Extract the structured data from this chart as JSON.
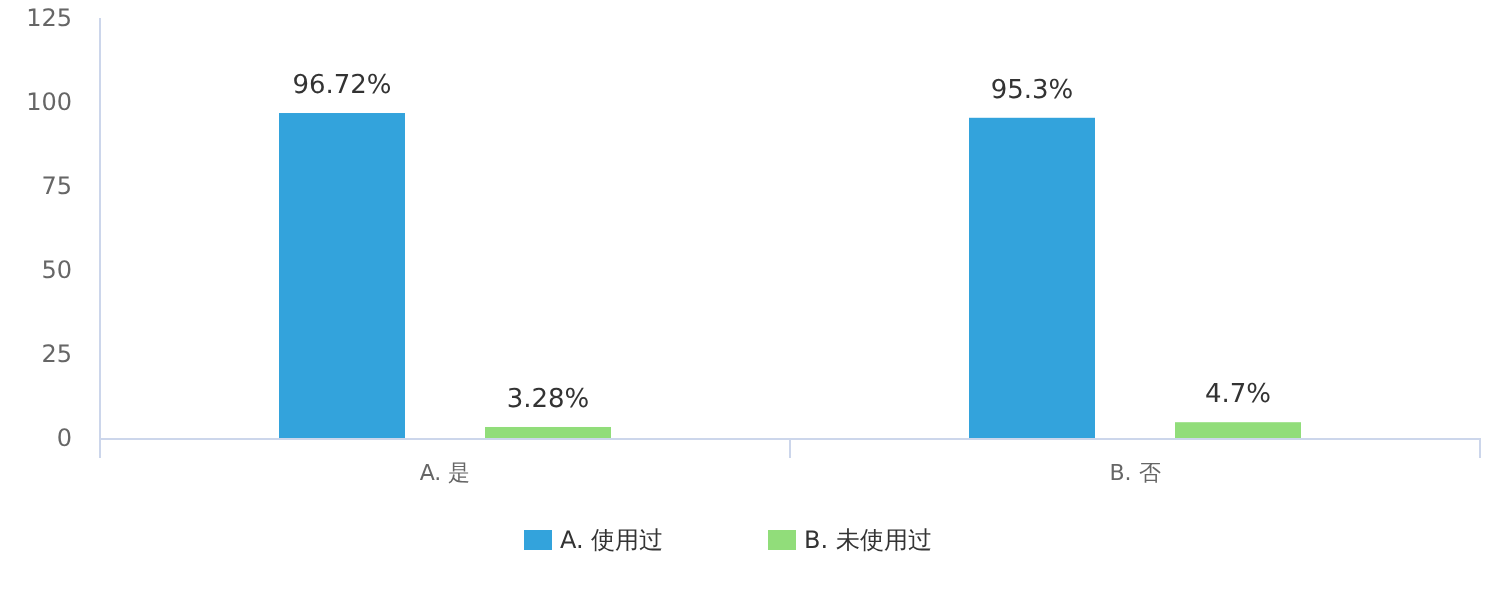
{
  "chart_data": {
    "type": "bar",
    "categories": [
      "A. 是",
      "B. 否"
    ],
    "series": [
      {
        "name": "A. 使用过",
        "color": "#33a3dc",
        "values": [
          96.72,
          95.3
        ],
        "value_labels": [
          "96.72%",
          "95.3%"
        ]
      },
      {
        "name": "B. 未使用过",
        "color": "#91dd7a",
        "values": [
          3.28,
          4.7
        ],
        "value_labels": [
          "3.28%",
          "4.7%"
        ]
      }
    ],
    "ylim": [
      0,
      125
    ],
    "yticks": [
      0,
      25,
      50,
      75,
      100,
      125
    ],
    "grid": false,
    "legend": "bottom"
  }
}
